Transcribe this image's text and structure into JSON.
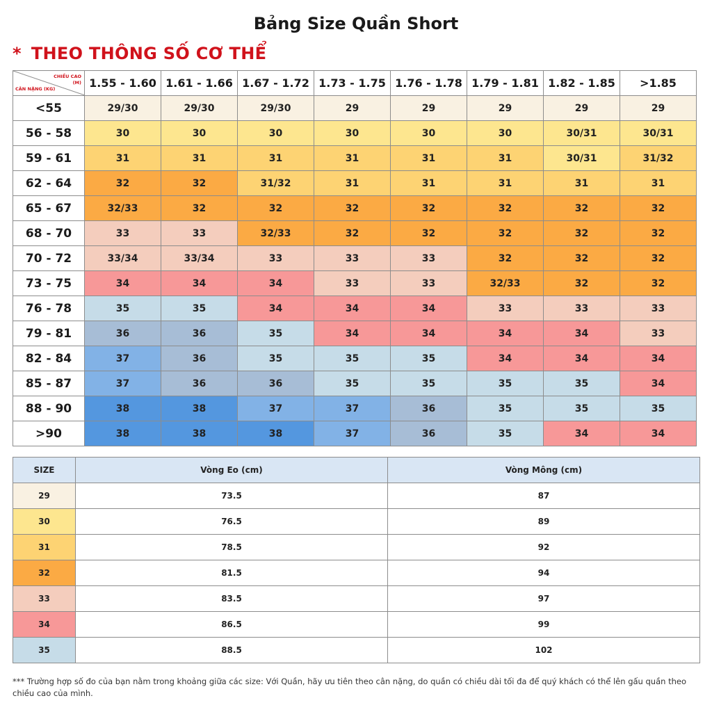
{
  "title": "Bảng Size Quần Short",
  "subtitle": {
    "star": "*",
    "text": "THEO THÔNG SỐ CƠ THỂ"
  },
  "corner": {
    "top_line1": "CHIỀU CAO",
    "top_line2": "(M)",
    "bottom": "CÂN NẶNG (KG)"
  },
  "heights": [
    "1.55 - 1.60",
    "1.61 - 1.66",
    "1.67 - 1.72",
    "1.73 - 1.75",
    "1.76 - 1.78",
    "1.79 - 1.81",
    "1.82 - 1.85",
    ">1.85"
  ],
  "rows": [
    {
      "weight": "<55",
      "sizes": [
        "29/30",
        "29/30",
        "29/30",
        "29",
        "29",
        "29",
        "29",
        "29"
      ]
    },
    {
      "weight": "56 - 58",
      "sizes": [
        "30",
        "30",
        "30",
        "30",
        "30",
        "30",
        "30/31",
        "30/31"
      ]
    },
    {
      "weight": "59 - 61",
      "sizes": [
        "31",
        "31",
        "31",
        "31",
        "31",
        "31",
        "30/31",
        "31/32"
      ]
    },
    {
      "weight": "62 - 64",
      "sizes": [
        "32",
        "32",
        "31/32",
        "31",
        "31",
        "31",
        "31",
        "31"
      ]
    },
    {
      "weight": "65 - 67",
      "sizes": [
        "32/33",
        "32",
        "32",
        "32",
        "32",
        "32",
        "32",
        "32"
      ]
    },
    {
      "weight": "68 - 70",
      "sizes": [
        "33",
        "33",
        "32/33",
        "32",
        "32",
        "32",
        "32",
        "32"
      ]
    },
    {
      "weight": "70 - 72",
      "sizes": [
        "33/34",
        "33/34",
        "33",
        "33",
        "33",
        "32",
        "32",
        "32"
      ]
    },
    {
      "weight": "73 - 75",
      "sizes": [
        "34",
        "34",
        "34",
        "33",
        "33",
        "32/33",
        "32",
        "32"
      ]
    },
    {
      "weight": "76 - 78",
      "sizes": [
        "35",
        "35",
        "34",
        "34",
        "34",
        "33",
        "33",
        "33"
      ]
    },
    {
      "weight": "79 - 81",
      "sizes": [
        "36",
        "36",
        "35",
        "34",
        "34",
        "34",
        "34",
        "33"
      ]
    },
    {
      "weight": "82 - 84",
      "sizes": [
        "37",
        "36",
        "35",
        "35",
        "35",
        "34",
        "34",
        "34"
      ]
    },
    {
      "weight": "85 - 87",
      "sizes": [
        "37",
        "36",
        "36",
        "35",
        "35",
        "35",
        "35",
        "34"
      ]
    },
    {
      "weight": "88 - 90",
      "sizes": [
        "38",
        "38",
        "37",
        "37",
        "36",
        "35",
        "35",
        "35"
      ]
    },
    {
      "weight": ">90",
      "sizes": [
        "38",
        "38",
        "38",
        "37",
        "36",
        "35",
        "34",
        "34"
      ]
    }
  ],
  "size_colors": {
    "29/30": "#f9f1e2",
    "29": "#f9f1e2",
    "30": "#fde68f",
    "30/31": "#fde68f",
    "31": "#fdd373",
    "31/32": "#fdd373",
    "32": "#fbaa44",
    "32/33": "#fbaa44",
    "33": "#f4cdbd",
    "33/34": "#f4cdbd",
    "34": "#f79898",
    "35": "#c6dce8",
    "36": "#a7bdd6",
    "37": "#82b2e6",
    "38": "#5497df"
  },
  "measure_table": {
    "headers": [
      "SIZE",
      "Vòng Eo (cm)",
      "Vòng Mông (cm)"
    ],
    "rows": [
      {
        "size": "29",
        "waist": "73.5",
        "hip": "87"
      },
      {
        "size": "30",
        "waist": "76.5",
        "hip": "89"
      },
      {
        "size": "31",
        "waist": "78.5",
        "hip": "92"
      },
      {
        "size": "32",
        "waist": "81.5",
        "hip": "94"
      },
      {
        "size": "33",
        "waist": "83.5",
        "hip": "97"
      },
      {
        "size": "34",
        "waist": "86.5",
        "hip": "99"
      },
      {
        "size": "35",
        "waist": "88.5",
        "hip": "102"
      }
    ]
  },
  "note": "*** Trường hợp số đo của bạn nằm trong khoảng giữa các size: Với Quần, hãy ưu tiên theo cân nặng, do quần có chiều dài tối đa để quý khách có thể lên gấu quần theo chiều cao của mình."
}
